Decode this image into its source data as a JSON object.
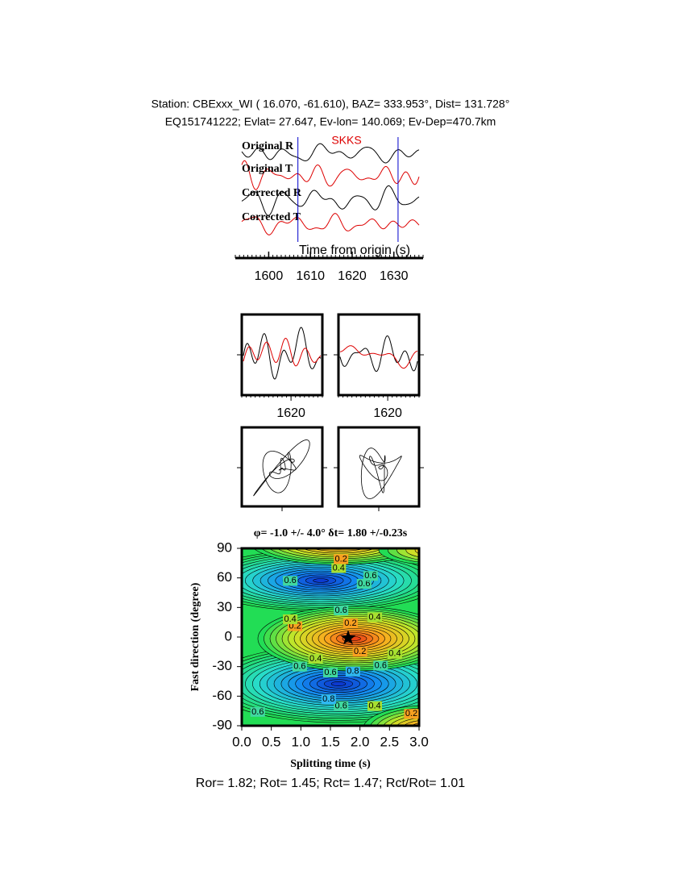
{
  "header": {
    "line1": "Station: CBExxx_WI (  16.070,  -61.610), BAZ=  333.953°, Dist=  131.728°",
    "line2": "EQ151741222; Evlat=  27.647, Ev-lon= 140.069; Ev-Dep=470.7km"
  },
  "chart_data": [
    {
      "type": "waveform",
      "phase": "SKKS",
      "traces": [
        "Original R",
        "Original T",
        "Corrected R",
        "Corrected T"
      ],
      "xlabel": "Time from origin (s)",
      "xlim": [
        1592,
        1637
      ],
      "xticks": [
        1600,
        1610,
        1620,
        1630
      ],
      "window": [
        1607,
        1631
      ]
    },
    {
      "type": "wave-pair",
      "xlim": [
        1609,
        1627
      ],
      "xticks": [
        1620
      ]
    },
    {
      "type": "wave-pair",
      "xlim": [
        1609,
        1627
      ],
      "xticks": [
        1620
      ]
    },
    {
      "type": "particle-motion"
    },
    {
      "type": "particle-motion"
    },
    {
      "type": "contour",
      "title": "φ= -1.0 +/- 4.0° δt= 1.80 +/-0.23s",
      "xlabel": "Splitting time (s)",
      "ylabel": "Fast direction (degree)",
      "xlim": [
        0,
        3
      ],
      "ylim": [
        -90,
        90
      ],
      "xticks": [
        {
          "value": 0,
          "label": "0.0"
        },
        0.5,
        {
          "value": 1,
          "label": "1.0"
        },
        1.5,
        {
          "value": 2,
          "label": "2.0"
        },
        2.5,
        {
          "value": 3,
          "label": "3.0"
        }
      ],
      "yticks": [
        -90,
        -60,
        -30,
        0,
        30,
        60,
        90
      ],
      "best": {
        "dt": 1.8,
        "phi": -1.0
      },
      "contour_labels": [
        {
          "dt": 0.27,
          "phi": -76,
          "value": 0.6
        },
        {
          "dt": 2.87,
          "phi": -78,
          "value": 0.2
        },
        {
          "dt": 2.25,
          "phi": -70,
          "value": 0.4
        },
        {
          "dt": 1.68,
          "phi": -70,
          "value": 0.6
        },
        {
          "dt": 1.47,
          "phi": -63,
          "value": 0.8
        },
        {
          "dt": 1.5,
          "phi": -36,
          "value": 0.6
        },
        {
          "dt": 1.88,
          "phi": -35,
          "value": 0.8
        },
        {
          "dt": 1.25,
          "phi": -22,
          "value": 0.4
        },
        {
          "dt": 0.98,
          "phi": -30,
          "value": 0.6
        },
        {
          "dt": 2.0,
          "phi": -15,
          "value": 0.2
        },
        {
          "dt": 2.35,
          "phi": -29,
          "value": 0.6
        },
        {
          "dt": 2.59,
          "phi": -17,
          "value": 0.4
        },
        {
          "dt": 1.84,
          "phi": 14,
          "value": 0.2
        },
        {
          "dt": 2.25,
          "phi": 20,
          "value": 0.4
        },
        {
          "dt": 1.68,
          "phi": 27,
          "value": 0.6
        },
        {
          "dt": 0.9,
          "phi": 11,
          "value": 0.2
        },
        {
          "dt": 0.82,
          "phi": 18,
          "value": 0.4
        },
        {
          "dt": 2.07,
          "phi": 54,
          "value": 0.6
        },
        {
          "dt": 2.18,
          "phi": 62,
          "value": 0.6
        },
        {
          "dt": 1.64,
          "phi": 70,
          "value": 0.4
        },
        {
          "dt": 1.68,
          "phi": 79,
          "value": 0.2
        },
        {
          "dt": 0.82,
          "phi": 57,
          "value": 0.6
        }
      ]
    }
  ],
  "footer": "Ror= 1.82; Rot= 1.45; Rct= 1.47; Rct/Rot= 1.01"
}
